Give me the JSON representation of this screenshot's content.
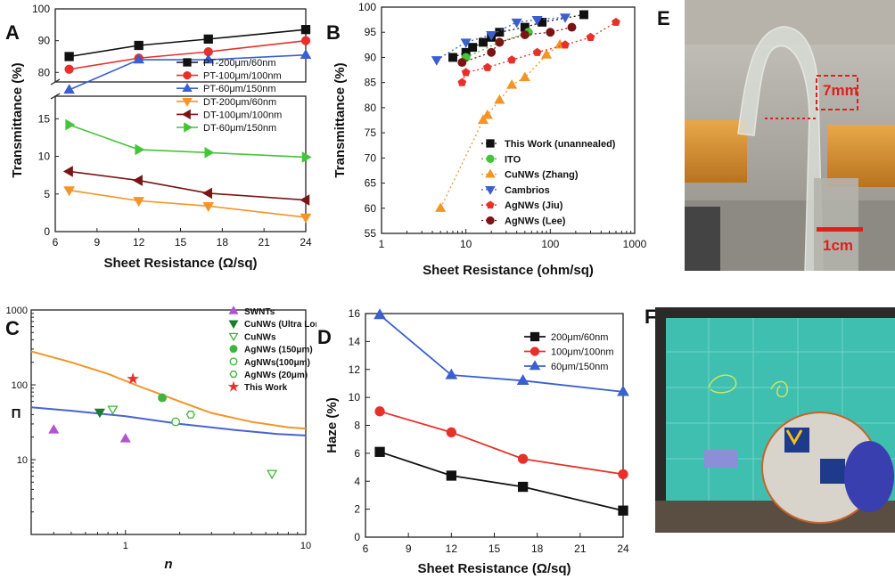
{
  "panel_letters": {
    "a": "A",
    "b": "B",
    "c": "C",
    "d": "D",
    "e": "E",
    "f": "F"
  },
  "colors": {
    "black": "#111111",
    "red": "#e8302a",
    "blue": "#3a5fcf",
    "orange": "#f39425",
    "darkred": "#7a1515",
    "green": "#44c437",
    "purple": "#b154d0",
    "darkgreen": "#1a7c2c",
    "lightgreen": "#40b43a",
    "curve_orange": "#f39425",
    "curve_blue": "#4a62d0"
  },
  "photo_e": {
    "scale_text": "7mm",
    "scalebar_text": "1cm",
    "icon": "flexible-film-photo"
  },
  "photo_f": {
    "icon": "touchscreen-demo-photo"
  },
  "chart_data": [
    {
      "panel": "A",
      "type": "line",
      "xlabel": "Sheet Resistance (Ω/sq)",
      "ylabel": "Transmittance (%)",
      "xlim": [
        6,
        24
      ],
      "xticks": [
        "6",
        "9",
        "12",
        "15",
        "18",
        "21",
        "24"
      ],
      "y_upper_lim": [
        77,
        100
      ],
      "y_upper_ticks": [
        "80",
        "90",
        "100"
      ],
      "y_lower_lim": [
        0,
        18
      ],
      "y_lower_ticks": [
        "0",
        "5",
        "10",
        "15"
      ],
      "axis_break": true,
      "legend_position": "middle-right",
      "series": [
        {
          "name": "PT-200μm/60nm",
          "color": "#111111",
          "marker": "square",
          "segment": "upper",
          "x": [
            7,
            12,
            17,
            24
          ],
          "y": [
            85,
            88.5,
            90.5,
            93.5
          ]
        },
        {
          "name": "PT-100μm/100nm",
          "color": "#e8302a",
          "marker": "circle",
          "segment": "upper",
          "x": [
            7,
            12,
            17,
            24
          ],
          "y": [
            81,
            84.5,
            86.5,
            90
          ]
        },
        {
          "name": "PT-60μm/150nm",
          "color": "#3a5fcf",
          "marker": "triangle-up",
          "segment": "upper",
          "x": [
            7,
            12,
            17,
            24
          ],
          "y": [
            74.5,
            84,
            84,
            85.5
          ]
        },
        {
          "name": "DT-200μm/60nm",
          "color": "#f39425",
          "marker": "triangle-down",
          "segment": "lower",
          "x": [
            7,
            12,
            17,
            24
          ],
          "y": [
            5.5,
            4.1,
            3.4,
            1.9
          ]
        },
        {
          "name": "DT-100μm/100nm",
          "color": "#7a1515",
          "marker": "triangle-left",
          "segment": "lower",
          "x": [
            7,
            12,
            17,
            24
          ],
          "y": [
            8.0,
            6.8,
            5.1,
            4.2
          ]
        },
        {
          "name": "DT-60μm/150nm",
          "color": "#44c437",
          "marker": "triangle-right",
          "segment": "lower",
          "x": [
            7,
            12,
            17,
            24
          ],
          "y": [
            14.2,
            10.9,
            10.5,
            9.9
          ]
        }
      ]
    },
    {
      "panel": "B",
      "type": "scatter",
      "xlabel": "Sheet Resistance (ohm/sq)",
      "ylabel": "Transmittance (%)",
      "xscale": "log",
      "xlim": [
        1,
        1000
      ],
      "xticks": [
        "1",
        "10",
        "100",
        "1000"
      ],
      "ylim": [
        55,
        100
      ],
      "yticks": [
        "55",
        "60",
        "65",
        "70",
        "75",
        "80",
        "85",
        "90",
        "95",
        "100"
      ],
      "legend_position": "middle-right",
      "series": [
        {
          "name": "This Work (unannealed)",
          "color": "#111111",
          "marker": "square",
          "x": [
            7,
            10,
            12,
            16,
            20,
            25,
            50,
            80,
            250
          ],
          "y": [
            90,
            91,
            92,
            93,
            94,
            95,
            96,
            97,
            98.5
          ]
        },
        {
          "name": "ITO",
          "color": "#44c437",
          "marker": "circle",
          "x": [
            10,
            25,
            55
          ],
          "y": [
            90,
            93,
            95
          ]
        },
        {
          "name": "CuNWs (Zhang)",
          "color": "#f39425",
          "marker": "triangle-up",
          "x": [
            5,
            16,
            18,
            25,
            35,
            50,
            90,
            130
          ],
          "y": [
            60,
            77.5,
            78.5,
            81.5,
            84.5,
            86,
            90.5,
            92.5
          ]
        },
        {
          "name": "Cambrios",
          "color": "#3a5fcf",
          "marker": "triangle-down",
          "x": [
            4.5,
            10,
            20,
            40,
            70,
            150
          ],
          "y": [
            89.5,
            93,
            94.5,
            97,
            97.5,
            98
          ]
        },
        {
          "name": "AgNWs (Jiu)",
          "color": "#e8302a",
          "marker": "pentagon",
          "x": [
            9,
            10,
            18,
            35,
            70,
            150,
            300,
            600
          ],
          "y": [
            85,
            87,
            88,
            89.5,
            91,
            92.5,
            94,
            97
          ]
        },
        {
          "name": "AgNWs (Lee)",
          "color": "#7a1515",
          "marker": "circle",
          "x": [
            9,
            20,
            25,
            50,
            100,
            180
          ],
          "y": [
            89,
            91,
            93,
            94.5,
            95,
            96
          ]
        }
      ]
    },
    {
      "panel": "C",
      "type": "scatter",
      "xlabel": "n",
      "ylabel": "Π",
      "xscale": "log",
      "yscale": "log",
      "xlim": [
        0.3,
        10
      ],
      "xticks": [
        "1",
        "10"
      ],
      "ylim": [
        1,
        1000
      ],
      "yticks": [
        "10",
        "100",
        "1000"
      ],
      "legend_position": "top-right",
      "series": [
        {
          "name": "SWNTs",
          "color": "#b154d0",
          "marker": "triangle-up",
          "filled": true,
          "x": [
            0.4,
            1.0
          ],
          "y": [
            25,
            19
          ]
        },
        {
          "name": "CuNWs (Ultra Long)",
          "color": "#1a7c2c",
          "marker": "triangle-down",
          "filled": true,
          "x": [
            0.72
          ],
          "y": [
            43
          ]
        },
        {
          "name": "CuNWs",
          "color": "#40b43a",
          "marker": "triangle-down",
          "filled": false,
          "x": [
            0.85,
            6.5
          ],
          "y": [
            47,
            6.5
          ]
        },
        {
          "name": "AgNWs (150μm)",
          "color": "#40b43a",
          "marker": "circle",
          "filled": true,
          "x": [
            1.6
          ],
          "y": [
            67
          ]
        },
        {
          "name": "AgNWs(100μm)",
          "color": "#40b43a",
          "marker": "circle",
          "filled": false,
          "x": [
            1.9
          ],
          "y": [
            32
          ]
        },
        {
          "name": "AgNWs (20μm)",
          "color": "#40b43a",
          "marker": "hexagon",
          "filled": false,
          "x": [
            2.3
          ],
          "y": [
            40
          ]
        },
        {
          "name": "This Work",
          "color": "#e8302a",
          "marker": "star",
          "filled": true,
          "x": [
            1.1
          ],
          "y": [
            120
          ]
        }
      ],
      "curves": [
        {
          "color": "#f39425",
          "x": [
            0.3,
            0.5,
            0.8,
            1.2,
            2,
            3,
            5,
            8,
            10
          ],
          "y": [
            280,
            200,
            140,
            95,
            60,
            42,
            32,
            27,
            26
          ]
        },
        {
          "color": "#4a62d0",
          "x": [
            0.3,
            0.5,
            1,
            2,
            4,
            7,
            10
          ],
          "y": [
            50,
            45,
            38,
            30,
            25,
            22,
            21
          ]
        }
      ]
    },
    {
      "panel": "D",
      "type": "line",
      "xlabel": "Sheet Resistance (Ω/sq)",
      "ylabel": "Haze (%)",
      "xlim": [
        6,
        24
      ],
      "xticks": [
        "6",
        "9",
        "12",
        "15",
        "18",
        "21",
        "24"
      ],
      "ylim": [
        0,
        16
      ],
      "yticks": [
        "0",
        "2",
        "4",
        "6",
        "8",
        "10",
        "12",
        "14",
        "16"
      ],
      "legend_position": "top-right",
      "series": [
        {
          "name": "200μm/60nm",
          "color": "#111111",
          "marker": "square",
          "x": [
            7,
            12,
            17,
            24
          ],
          "y": [
            6.1,
            4.4,
            3.6,
            1.9
          ]
        },
        {
          "name": "100μm/100nm",
          "color": "#e8302a",
          "marker": "circle",
          "x": [
            7,
            12,
            17,
            24
          ],
          "y": [
            9.0,
            7.5,
            5.6,
            4.5
          ]
        },
        {
          "name": "60μm/150nm",
          "color": "#3a5fcf",
          "marker": "triangle-up",
          "x": [
            7,
            12,
            17,
            24
          ],
          "y": [
            15.9,
            11.6,
            11.2,
            10.4
          ]
        }
      ]
    }
  ]
}
